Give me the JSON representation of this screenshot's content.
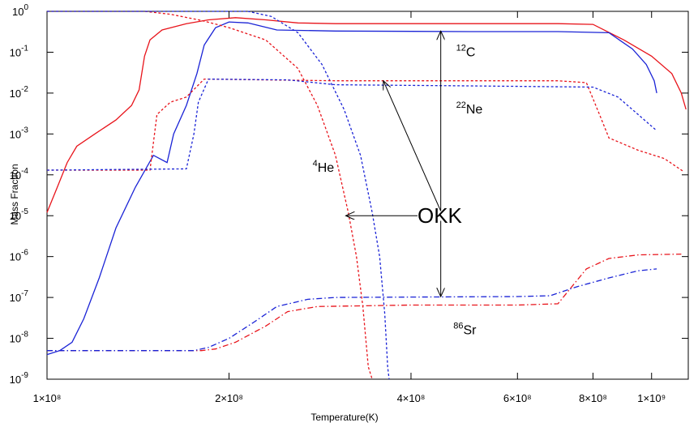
{
  "chart_data": {
    "type": "line",
    "xlabel": "Temperature(K)",
    "ylabel": "Mass Fraction",
    "xscale": "log",
    "yscale": "log",
    "xlim": [
      100000000.0,
      1150000000.0
    ],
    "ylim": [
      1e-09,
      1.0
    ],
    "grid": false,
    "legend": "none",
    "x_ticks": [
      {
        "value": 100000000.0,
        "label": "1×10⁸"
      },
      {
        "value": 200000000.0,
        "label": "2×10⁸"
      },
      {
        "value": 400000000.0,
        "label": "4×10⁸"
      },
      {
        "value": 600000000.0,
        "label": "6×10⁸"
      },
      {
        "value": 800000000.0,
        "label": "8×10⁸"
      },
      {
        "value": 1000000000.0,
        "label": "1×10⁹"
      }
    ],
    "y_ticks": [
      {
        "value": 1.0,
        "base": "10",
        "exp": "0"
      },
      {
        "value": 0.1,
        "base": "10",
        "exp": "-1"
      },
      {
        "value": 0.01,
        "base": "10",
        "exp": "-2"
      },
      {
        "value": 0.001,
        "base": "10",
        "exp": "-3"
      },
      {
        "value": 0.0001,
        "base": "10",
        "exp": "-4"
      },
      {
        "value": 1e-05,
        "base": "10",
        "exp": "-5"
      },
      {
        "value": 1e-06,
        "base": "10",
        "exp": "-6"
      },
      {
        "value": 1e-07,
        "base": "10",
        "exp": "-7"
      },
      {
        "value": 1e-08,
        "base": "10",
        "exp": "-8"
      },
      {
        "value": 1e-09,
        "base": "10",
        "exp": "-9"
      }
    ],
    "colors": {
      "red": "#e8141b",
      "blue": "#1a23d6"
    },
    "series": [
      {
        "color": "red",
        "dash": "solid",
        "points": [
          [
            100000000.0,
            1.2e-05
          ],
          [
            104000000.0,
            5e-05
          ],
          [
            108000000.0,
            0.0002
          ],
          [
            112000000.0,
            0.0005
          ],
          [
            120000000.0,
            0.001
          ],
          [
            130000000.0,
            0.0022
          ],
          [
            138000000.0,
            0.005
          ],
          [
            142000000.0,
            0.012
          ],
          [
            145000000.0,
            0.08
          ],
          [
            148000000.0,
            0.2
          ],
          [
            155000000.0,
            0.35
          ],
          [
            170000000.0,
            0.5
          ],
          [
            185000000.0,
            0.62
          ],
          [
            205000000.0,
            0.7
          ],
          [
            230000000.0,
            0.62
          ],
          [
            260000000.0,
            0.52
          ],
          [
            300000000.0,
            0.5
          ],
          [
            500000000.0,
            0.5
          ],
          [
            700000000.0,
            0.5
          ],
          [
            800000000.0,
            0.48
          ],
          [
            900000000.0,
            0.2
          ],
          [
            1000000000.0,
            0.08
          ],
          [
            1080000000.0,
            0.03
          ],
          [
            1120000000.0,
            0.01
          ],
          [
            1140000000.0,
            0.004
          ]
        ]
      },
      {
        "color": "blue",
        "dash": "solid",
        "points": [
          [
            100000000.0,
            4e-09
          ],
          [
            105000000.0,
            5e-09
          ],
          [
            110000000.0,
            8e-09
          ],
          [
            115000000.0,
            3e-08
          ],
          [
            122000000.0,
            3e-07
          ],
          [
            130000000.0,
            5e-06
          ],
          [
            140000000.0,
            5e-05
          ],
          [
            150000000.0,
            0.0003
          ],
          [
            158000000.0,
            0.0002
          ],
          [
            162000000.0,
            0.001
          ],
          [
            170000000.0,
            0.005
          ],
          [
            177000000.0,
            0.03
          ],
          [
            182000000.0,
            0.15
          ],
          [
            190000000.0,
            0.4
          ],
          [
            200000000.0,
            0.55
          ],
          [
            215000000.0,
            0.52
          ],
          [
            240000000.0,
            0.35
          ],
          [
            300000000.0,
            0.33
          ],
          [
            500000000.0,
            0.32
          ],
          [
            700000000.0,
            0.32
          ],
          [
            850000000.0,
            0.3
          ],
          [
            930000000.0,
            0.12
          ],
          [
            980000000.0,
            0.05
          ],
          [
            1010000000.0,
            0.02
          ],
          [
            1020000000.0,
            0.01
          ]
        ]
      },
      {
        "color": "red",
        "dash": "dotted",
        "points": [
          [
            100000000.0,
            1.0
          ],
          [
            145000000.0,
            1.0
          ],
          [
            160000000.0,
            0.85
          ],
          [
            180000000.0,
            0.6
          ],
          [
            200000000.0,
            0.4
          ],
          [
            230000000.0,
            0.2
          ],
          [
            260000000.0,
            0.04
          ],
          [
            280000000.0,
            0.005
          ],
          [
            300000000.0,
            0.0003
          ],
          [
            315000000.0,
            1.2e-05
          ],
          [
            325000000.0,
            1e-06
          ],
          [
            333000000.0,
            6e-08
          ],
          [
            340000000.0,
            2e-09
          ],
          [
            345000000.0,
            1e-09
          ]
        ]
      },
      {
        "color": "blue",
        "dash": "dotted",
        "points": [
          [
            100000000.0,
            1.0
          ],
          [
            215000000.0,
            1.0
          ],
          [
            235000000.0,
            0.75
          ],
          [
            260000000.0,
            0.3
          ],
          [
            285000000.0,
            0.05
          ],
          [
            310000000.0,
            0.004
          ],
          [
            330000000.0,
            0.0003
          ],
          [
            345000000.0,
            1.2e-05
          ],
          [
            355000000.0,
            1e-06
          ],
          [
            362000000.0,
            4e-08
          ],
          [
            366000000.0,
            2e-09
          ],
          [
            368000000.0,
            1e-09
          ]
        ]
      },
      {
        "color": "red",
        "dash": "dotted",
        "points": [
          [
            100000000.0,
            0.00013
          ],
          [
            148000000.0,
            0.00013
          ],
          [
            152000000.0,
            0.003
          ],
          [
            160000000.0,
            0.006
          ],
          [
            170000000.0,
            0.008
          ],
          [
            182000000.0,
            0.022
          ],
          [
            300000000.0,
            0.02
          ],
          [
            500000000.0,
            0.02
          ],
          [
            700000000.0,
            0.02
          ],
          [
            780000000.0,
            0.018
          ],
          [
            820000000.0,
            0.003
          ],
          [
            850000000.0,
            0.0008
          ],
          [
            950000000.0,
            0.0004
          ],
          [
            1050000000.0,
            0.00025
          ],
          [
            1130000000.0,
            0.00012
          ]
        ]
      },
      {
        "color": "blue",
        "dash": "dotted",
        "points": [
          [
            100000000.0,
            0.00013
          ],
          [
            170000000.0,
            0.00014
          ],
          [
            175000000.0,
            0.001
          ],
          [
            178000000.0,
            0.006
          ],
          [
            185000000.0,
            0.022
          ],
          [
            250000000.0,
            0.021
          ],
          [
            300000000.0,
            0.016
          ],
          [
            500000000.0,
            0.015
          ],
          [
            800000000.0,
            0.014
          ],
          [
            880000000.0,
            0.008
          ],
          [
            950000000.0,
            0.003
          ],
          [
            1020000000.0,
            0.0012
          ]
        ]
      },
      {
        "color": "red",
        "dash": "dashdot",
        "points": [
          [
            100000000.0,
            5e-09
          ],
          [
            180000000.0,
            5e-09
          ],
          [
            190000000.0,
            5.5e-09
          ],
          [
            205000000.0,
            8e-09
          ],
          [
            230000000.0,
            2e-08
          ],
          [
            250000000.0,
            4.5e-08
          ],
          [
            280000000.0,
            6e-08
          ],
          [
            400000000.0,
            6.5e-08
          ],
          [
            600000000.0,
            6.5e-08
          ],
          [
            700000000.0,
            7e-08
          ],
          [
            730000000.0,
            1.5e-07
          ],
          [
            780000000.0,
            5e-07
          ],
          [
            850000000.0,
            9e-07
          ],
          [
            950000000.0,
            1.1e-06
          ],
          [
            1120000000.0,
            1.15e-06
          ]
        ]
      },
      {
        "color": "blue",
        "dash": "dashdot",
        "points": [
          [
            100000000.0,
            5e-09
          ],
          [
            175000000.0,
            5e-09
          ],
          [
            185000000.0,
            6e-09
          ],
          [
            200000000.0,
            1e-08
          ],
          [
            220000000.0,
            2.5e-08
          ],
          [
            240000000.0,
            6e-08
          ],
          [
            270000000.0,
            9e-08
          ],
          [
            300000000.0,
            1e-07
          ],
          [
            600000000.0,
            1.05e-07
          ],
          [
            680000000.0,
            1.1e-07
          ],
          [
            750000000.0,
            1.8e-07
          ],
          [
            850000000.0,
            3e-07
          ],
          [
            950000000.0,
            4.5e-07
          ],
          [
            1020000000.0,
            5e-07
          ]
        ]
      }
    ],
    "annotations": [
      {
        "id": "c12",
        "sup": "12",
        "text": "C",
        "x": 475000000.0,
        "y": 0.1
      },
      {
        "id": "ne22",
        "sup": "22",
        "text": "Ne",
        "x": 475000000.0,
        "y": 0.004
      },
      {
        "id": "he4",
        "sup": "4",
        "text": "He",
        "x": 275000000.0,
        "y": 0.00015
      },
      {
        "id": "sr86",
        "sup": "86",
        "text": "Sr",
        "x": 470000000.0,
        "y": 1.6e-08
      },
      {
        "id": "okk",
        "sup": "",
        "text": "OKK",
        "x": 410000000.0,
        "y": 1e-05
      }
    ],
    "arrows": [
      {
        "from": [
          448000000.0,
          1.3e-05
        ],
        "to": [
          448000000.0,
          0.33
        ]
      },
      {
        "from": [
          448000000.0,
          1.3e-05
        ],
        "to": [
          360000000.0,
          0.02
        ]
      },
      {
        "from": [
          410000000.0,
          1e-05
        ],
        "to": [
          312000000.0,
          1e-05
        ]
      },
      {
        "from": [
          448000000.0,
          7.5e-06
        ],
        "to": [
          448000000.0,
          1.05e-07
        ]
      }
    ]
  }
}
